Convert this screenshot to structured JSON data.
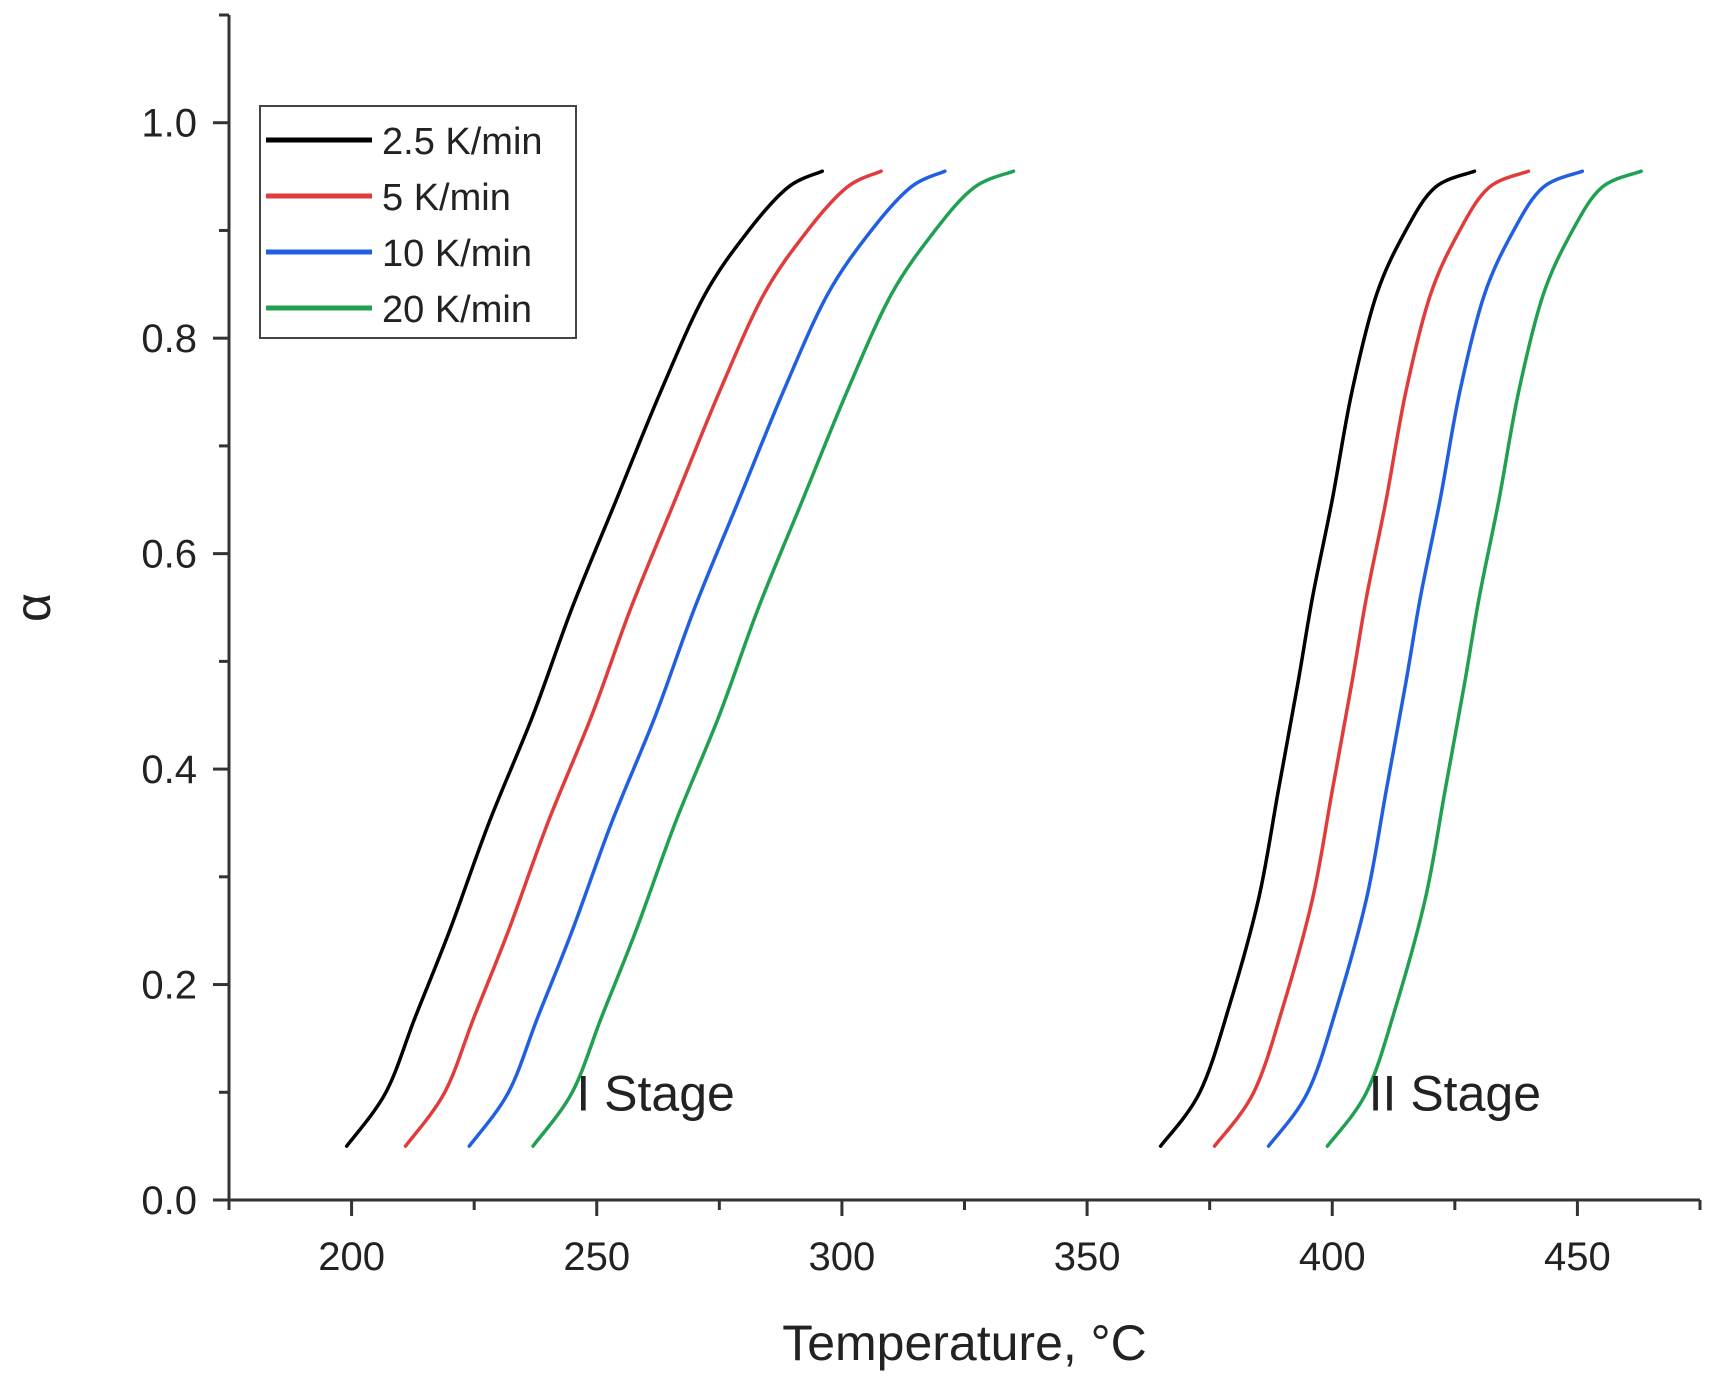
{
  "chart_data": {
    "type": "line",
    "title": "",
    "xlabel": "Temperature, °C",
    "ylabel": "α",
    "xlim": [
      175,
      475
    ],
    "ylim": [
      0.0,
      1.1
    ],
    "xticks": [
      "200",
      "250",
      "300",
      "350",
      "400",
      "450"
    ],
    "yticks": [
      "0.0",
      "0.2",
      "0.4",
      "0.6",
      "0.8",
      "1.0"
    ],
    "legend_position": "top-left",
    "annotations": [
      {
        "text": "I Stage",
        "x": 262,
        "y": 0.1
      },
      {
        "text": "II Stage",
        "x": 425,
        "y": 0.1
      }
    ],
    "series": [
      {
        "name": "2.5 K/min",
        "color": "#000000",
        "stages": [
          {
            "x": [
              199,
              207,
              213,
              220,
              228,
              237,
              245,
              254,
              263,
              272,
              281,
              289,
              296
            ],
            "y": [
              0.05,
              0.1,
              0.17,
              0.25,
              0.35,
              0.45,
              0.55,
              0.65,
              0.75,
              0.84,
              0.9,
              0.94,
              0.955
            ]
          },
          {
            "x": [
              365,
              373,
              379,
              385,
              389,
              393,
              396,
              400,
              404,
              409,
              415,
              421,
              429
            ],
            "y": [
              0.05,
              0.1,
              0.18,
              0.28,
              0.38,
              0.48,
              0.56,
              0.65,
              0.75,
              0.84,
              0.9,
              0.94,
              0.955
            ]
          }
        ]
      },
      {
        "name": "5 K/min",
        "color": "#e03c3c",
        "stages": [
          {
            "x": [
              211,
              219,
              225,
              232,
              240,
              249,
              257,
              266,
              275,
              284,
              293,
              301,
              308
            ],
            "y": [
              0.05,
              0.1,
              0.17,
              0.25,
              0.35,
              0.45,
              0.55,
              0.65,
              0.75,
              0.84,
              0.9,
              0.94,
              0.955
            ]
          },
          {
            "x": [
              376,
              384,
              390,
              396,
              400,
              404,
              407,
              411,
              415,
              420,
              426,
              432,
              440
            ],
            "y": [
              0.05,
              0.1,
              0.18,
              0.28,
              0.38,
              0.48,
              0.56,
              0.65,
              0.75,
              0.84,
              0.9,
              0.94,
              0.955
            ]
          }
        ]
      },
      {
        "name": "10 K/min",
        "color": "#2060e0",
        "stages": [
          {
            "x": [
              224,
              232,
              238,
              245,
              253,
              262,
              270,
              279,
              288,
              297,
              306,
              314,
              321
            ],
            "y": [
              0.05,
              0.1,
              0.17,
              0.25,
              0.35,
              0.45,
              0.55,
              0.65,
              0.75,
              0.84,
              0.9,
              0.94,
              0.955
            ]
          },
          {
            "x": [
              387,
              395,
              401,
              407,
              411,
              415,
              418,
              422,
              426,
              431,
              437,
              443,
              451
            ],
            "y": [
              0.05,
              0.1,
              0.18,
              0.28,
              0.38,
              0.48,
              0.56,
              0.65,
              0.75,
              0.84,
              0.9,
              0.94,
              0.955
            ]
          }
        ]
      },
      {
        "name": "20 K/min",
        "color": "#20a050",
        "stages": [
          {
            "x": [
              237,
              245,
              251,
              258,
              266,
              275,
              283,
              292,
              301,
              310,
              319,
              327,
              335
            ],
            "y": [
              0.05,
              0.1,
              0.17,
              0.25,
              0.35,
              0.45,
              0.55,
              0.65,
              0.75,
              0.84,
              0.9,
              0.94,
              0.955
            ]
          },
          {
            "x": [
              399,
              407,
              413,
              419,
              423,
              427,
              430,
              434,
              438,
              443,
              449,
              455,
              463
            ],
            "y": [
              0.05,
              0.1,
              0.18,
              0.28,
              0.38,
              0.48,
              0.56,
              0.65,
              0.75,
              0.84,
              0.9,
              0.94,
              0.955
            ]
          }
        ]
      }
    ]
  }
}
